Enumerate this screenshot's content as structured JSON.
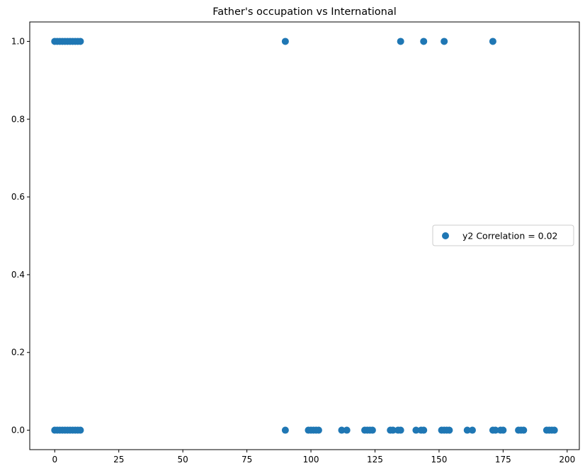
{
  "chart_data": {
    "type": "scatter",
    "title": "Father's occupation vs International",
    "xlabel": "",
    "ylabel": "",
    "xlim": [
      -9.75,
      204.75
    ],
    "ylim": [
      -0.05,
      1.05
    ],
    "x_ticks": [
      0,
      25,
      50,
      75,
      100,
      125,
      150,
      175,
      200
    ],
    "y_ticks": [
      0.0,
      0.2,
      0.4,
      0.6,
      0.8,
      1.0
    ],
    "x_tick_labels": [
      "0",
      "25",
      "50",
      "75",
      "100",
      "125",
      "150",
      "175",
      "200"
    ],
    "y_tick_labels": [
      "0.0",
      "0.2",
      "0.4",
      "0.6",
      "0.8",
      "1.0"
    ],
    "grid": false,
    "legend_position": "center-right",
    "series": [
      {
        "name": "y2 Correlation = 0.02",
        "color": "#1f77b4",
        "points": [
          [
            0,
            0
          ],
          [
            1,
            0
          ],
          [
            2,
            0
          ],
          [
            3,
            0
          ],
          [
            4,
            0
          ],
          [
            5,
            0
          ],
          [
            6,
            0
          ],
          [
            7,
            0
          ],
          [
            8,
            0
          ],
          [
            9,
            0
          ],
          [
            10,
            0
          ],
          [
            90,
            0
          ],
          [
            99,
            0
          ],
          [
            100,
            0
          ],
          [
            101,
            0
          ],
          [
            102,
            0
          ],
          [
            103,
            0
          ],
          [
            112,
            0
          ],
          [
            114,
            0
          ],
          [
            121,
            0
          ],
          [
            122,
            0
          ],
          [
            123,
            0
          ],
          [
            124,
            0
          ],
          [
            131,
            0
          ],
          [
            132,
            0
          ],
          [
            134,
            0
          ],
          [
            135,
            0
          ],
          [
            141,
            0
          ],
          [
            143,
            0
          ],
          [
            144,
            0
          ],
          [
            151,
            0
          ],
          [
            152,
            0
          ],
          [
            153,
            0
          ],
          [
            154,
            0
          ],
          [
            161,
            0
          ],
          [
            163,
            0
          ],
          [
            171,
            0
          ],
          [
            172,
            0
          ],
          [
            174,
            0
          ],
          [
            175,
            0
          ],
          [
            181,
            0
          ],
          [
            182,
            0
          ],
          [
            183,
            0
          ],
          [
            192,
            0
          ],
          [
            193,
            0
          ],
          [
            194,
            0
          ],
          [
            195,
            0
          ],
          [
            0,
            1
          ],
          [
            1,
            1
          ],
          [
            2,
            1
          ],
          [
            3,
            1
          ],
          [
            4,
            1
          ],
          [
            5,
            1
          ],
          [
            6,
            1
          ],
          [
            7,
            1
          ],
          [
            8,
            1
          ],
          [
            9,
            1
          ],
          [
            10,
            1
          ],
          [
            90,
            1
          ],
          [
            135,
            1
          ],
          [
            144,
            1
          ],
          [
            152,
            1
          ],
          [
            171,
            1
          ]
        ]
      }
    ]
  }
}
